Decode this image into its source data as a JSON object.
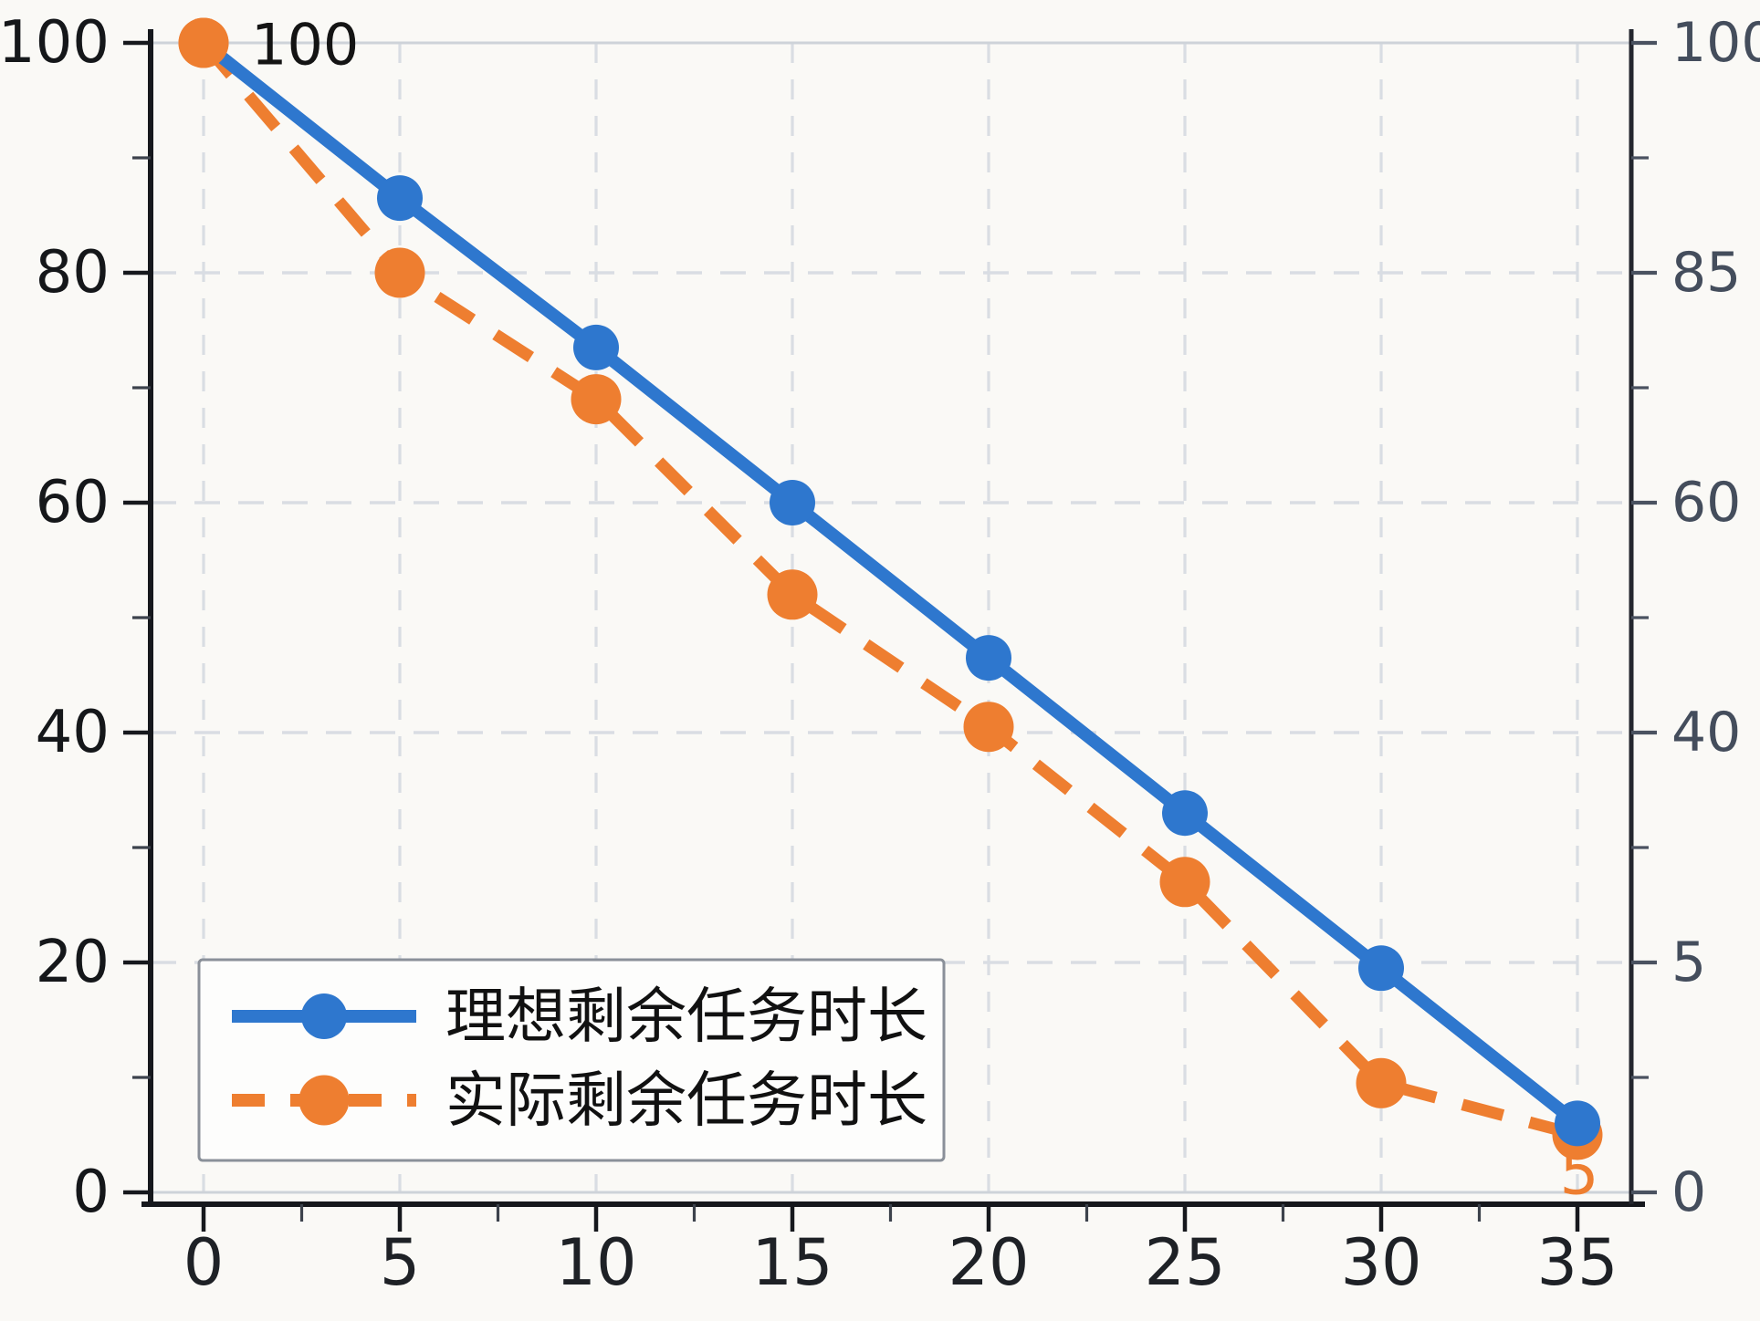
{
  "figure": {
    "background": "#faf9f6"
  },
  "chart_data": {
    "type": "line",
    "x": [
      0,
      5,
      10,
      15,
      20,
      25,
      30,
      35
    ],
    "series": [
      {
        "name": "理想剩余任务时长",
        "values": [
          100,
          86.5,
          73.5,
          60,
          46.5,
          33,
          19.5,
          6
        ],
        "color": "#2e77ce",
        "line_style": "solid",
        "marker": "circle"
      },
      {
        "name": "实际剩余任务时长",
        "values": [
          100,
          80,
          69,
          52,
          40.5,
          27,
          9.5,
          5
        ],
        "color": "#ee7e30",
        "line_style": "dashed",
        "marker": "circle"
      }
    ],
    "title": "",
    "xlabel": "",
    "ylabel": "",
    "x_axis": {
      "tick_labels": [
        "0",
        "5",
        "10",
        "15",
        "20",
        "25",
        "30",
        "35"
      ],
      "tick_values": [
        0,
        5,
        10,
        15,
        20,
        25,
        30,
        35
      ],
      "minor_tick_values": [
        2.5,
        7.5,
        12.5,
        17.5,
        22.5,
        27.5,
        32.5
      ]
    },
    "y_axis_left": {
      "tick_labels": [
        "0",
        "20",
        "40",
        "60",
        "80",
        "100"
      ],
      "tick_values": [
        0,
        20,
        40,
        60,
        80,
        100
      ],
      "minor_tick_values": [
        10,
        30,
        50,
        70,
        90
      ],
      "range": [
        0,
        100
      ]
    },
    "y_axis_right": {
      "tick_labels": [
        "100",
        "85",
        "60",
        "40",
        "5",
        "0"
      ],
      "label_at_values": [
        100,
        80,
        60,
        40,
        20,
        0
      ],
      "minor_tick_values": [
        90,
        70,
        50,
        30,
        10
      ]
    },
    "grid": true,
    "legend": {
      "position": "lower-left",
      "entries": [
        "理想剩余任务时长",
        "实际剩余任务时长"
      ]
    },
    "annotations": [
      {
        "text": "100",
        "series": 0,
        "point_index": 0,
        "placement": "right",
        "color": "#141414"
      },
      {
        "text": "5",
        "series": 1,
        "point_index": 7,
        "placement": "below",
        "color": "#ee7e30"
      }
    ]
  },
  "style_colors": {
    "grid_dashed": "#d9dde3",
    "grid_solid": "#ced3d9",
    "spine": "#16181d",
    "tick_label_left": "#15171a",
    "tick_label_bottom": "#1e2126",
    "tick_label_right": "#444d5c",
    "right_tick": "#4a5260",
    "legend_border": "#8a9099",
    "legend_bg": "#fdfdfc",
    "legend_text": "#111111"
  }
}
